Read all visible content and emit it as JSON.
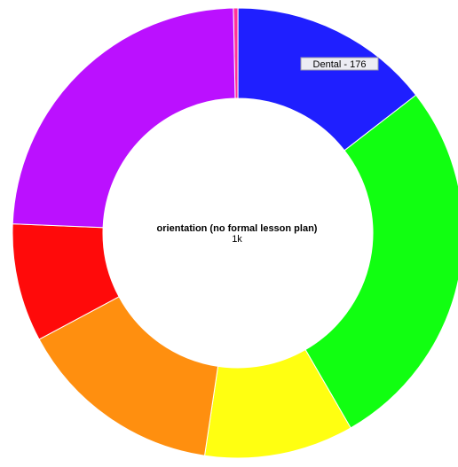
{
  "chart_data": {
    "type": "pie",
    "variant": "donut",
    "center": {
      "title": "orientation (no formal lesson plan)",
      "value": "1k"
    },
    "slices": [
      {
        "label": "",
        "value": 4,
        "color": "#ff3399"
      },
      {
        "label": "Dental",
        "value": 176,
        "color": "#1f1fff"
      },
      {
        "label": "",
        "value": 330,
        "color": "#11ff11"
      },
      {
        "label": "",
        "value": 130,
        "color": "#ffff11"
      },
      {
        "label": "",
        "value": 180,
        "color": "#ff8f0f"
      },
      {
        "label": "",
        "value": 103,
        "color": "#ff0a0a"
      },
      {
        "label": "",
        "value": 292,
        "color": "#bb10ff"
      }
    ],
    "tooltip": {
      "text": "Dental - 176"
    }
  }
}
